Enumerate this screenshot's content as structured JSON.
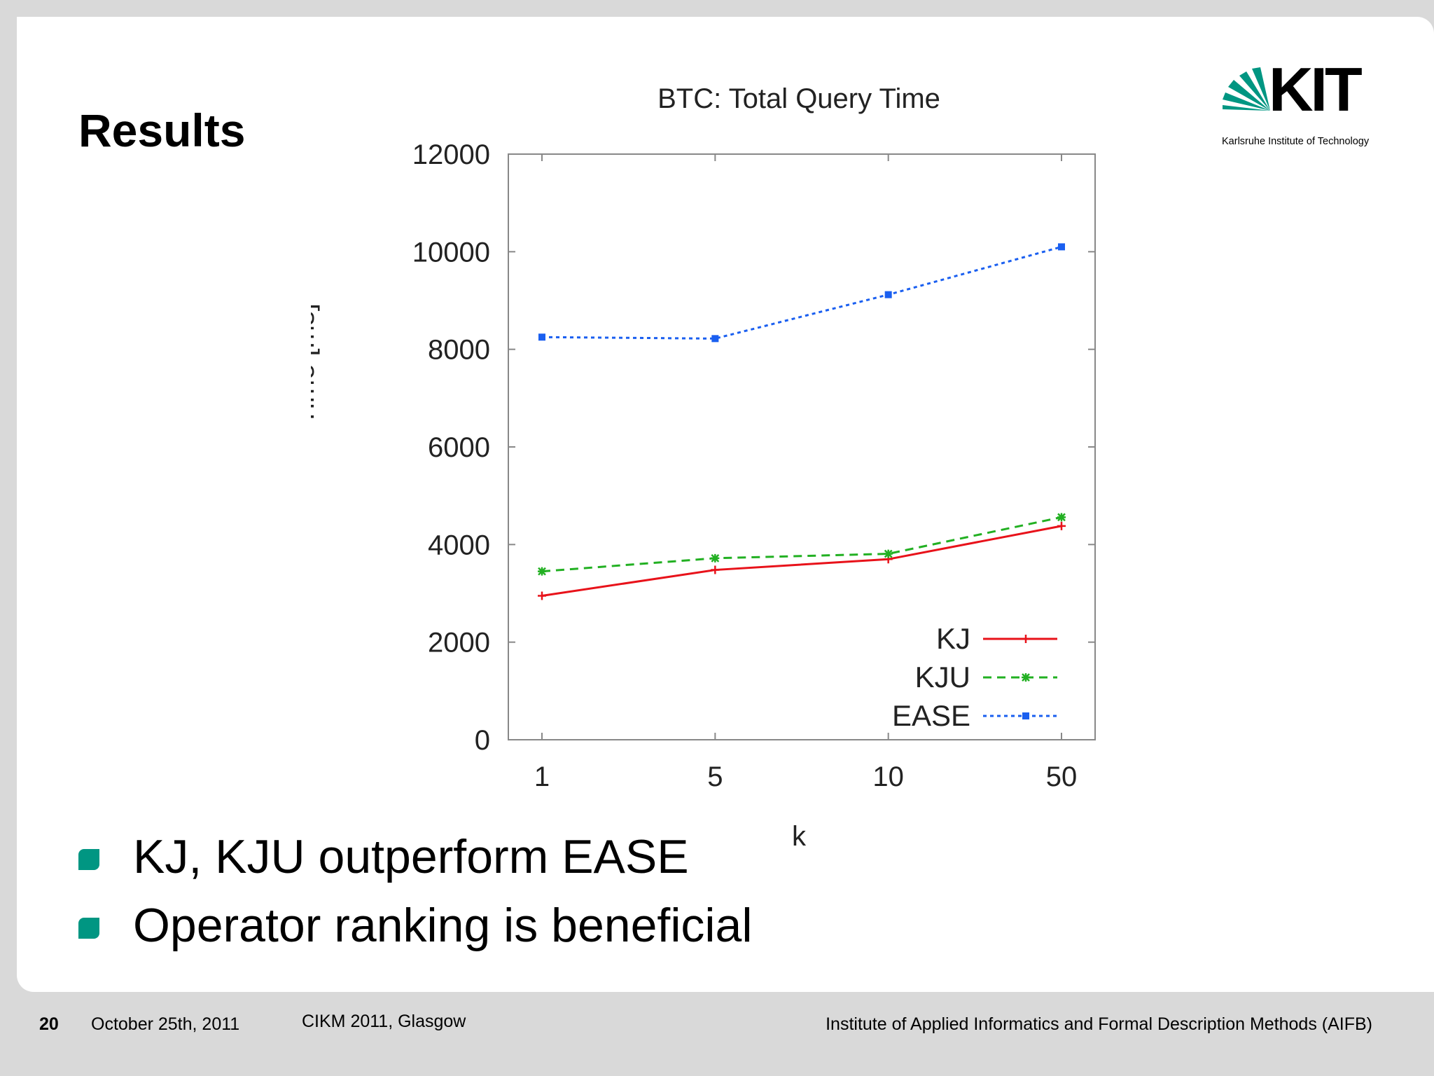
{
  "slide": {
    "title": "Results",
    "bullets": [
      "KJ, KJU outperform EASE",
      "Operator ranking is beneficial"
    ]
  },
  "logo": {
    "text": "KIT",
    "subtitle": "Karlsruhe Institute of Technology",
    "color": "#009682"
  },
  "footer": {
    "page_number": "20",
    "date": "October 25th, 2011",
    "conference": "CIKM 2011, Glasgow",
    "institute": "Institute of Applied Informatics and Formal Description Methods (AIFB)"
  },
  "chart_data": {
    "type": "line",
    "title": "BTC: Total Query Time",
    "xlabel": "k",
    "ylabel": "Time [ms]",
    "categories": [
      "1",
      "5",
      "10",
      "50"
    ],
    "ylim": [
      0,
      12000
    ],
    "yticks": [
      0,
      2000,
      4000,
      6000,
      8000,
      10000,
      12000
    ],
    "grid": false,
    "legend_position": "bottom-right",
    "series": [
      {
        "name": "KJ",
        "values": [
          2950,
          3480,
          3700,
          4380
        ],
        "color": "#e8121a",
        "dash": "solid",
        "marker": "plus"
      },
      {
        "name": "KJU",
        "values": [
          3450,
          3720,
          3810,
          4560
        ],
        "color": "#22b022",
        "dash": "dashed",
        "marker": "star"
      },
      {
        "name": "EASE",
        "values": [
          8250,
          8220,
          9120,
          10100
        ],
        "color": "#1a5ff0",
        "dash": "dotted",
        "marker": "square"
      }
    ]
  }
}
